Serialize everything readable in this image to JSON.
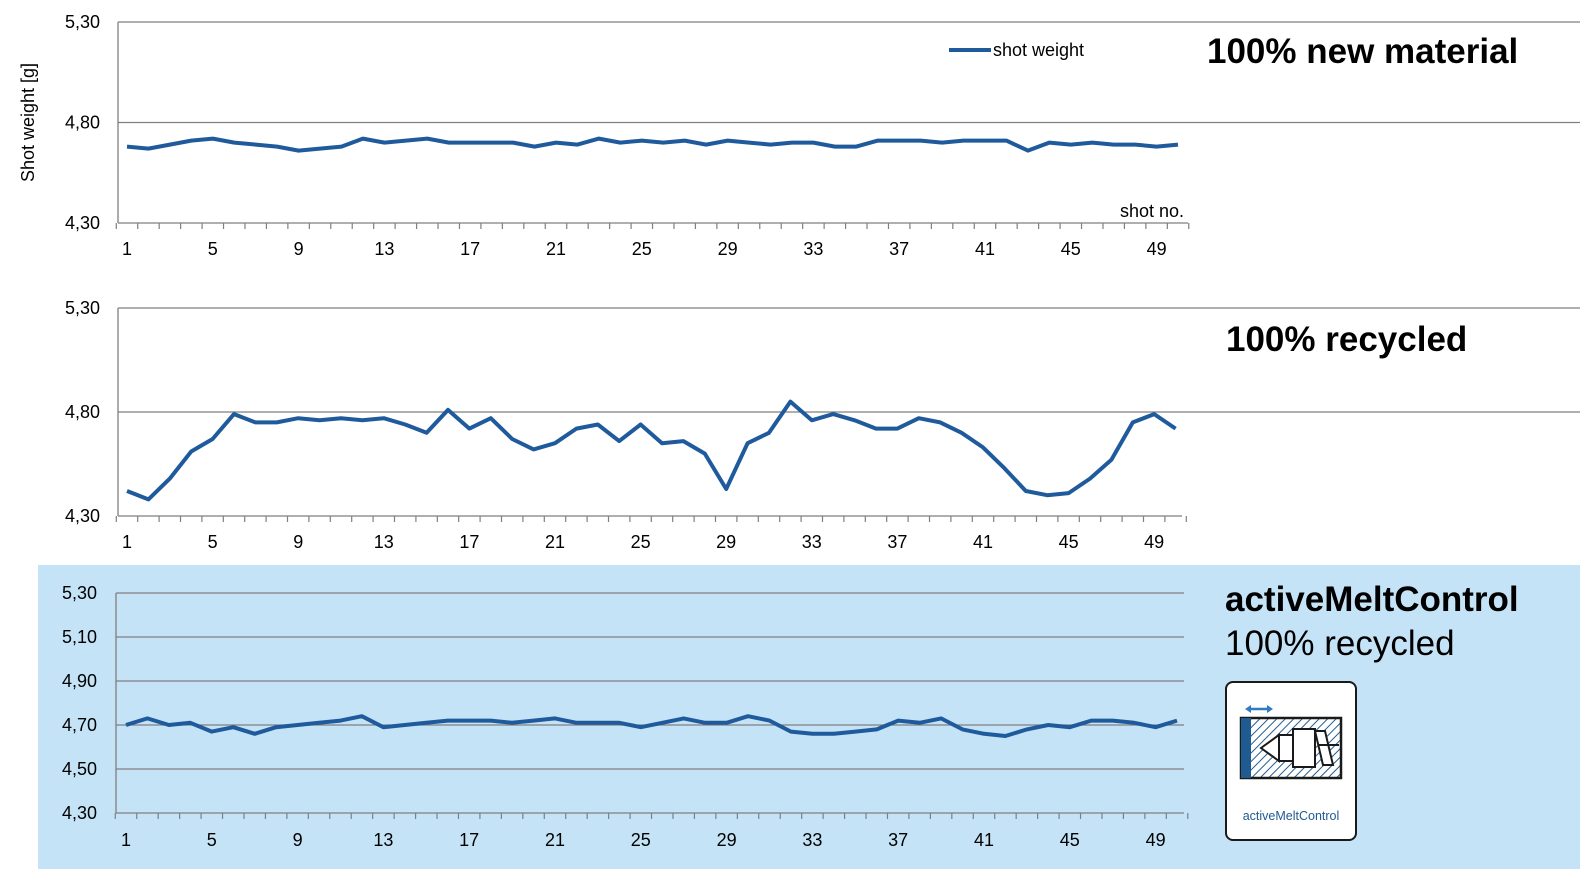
{
  "headings": {
    "panel1": "100% new material",
    "panel2": "100% recycled",
    "panel3_title": "activeMeltControl",
    "panel3_subtitle": "100% recycled"
  },
  "logo": {
    "caption": "activeMeltControl",
    "color": "#1f5a91"
  },
  "colors": {
    "line": "#1f5a9c",
    "grid": "#7f7f7f",
    "band": "#c5e3f6"
  },
  "chart_data": [
    {
      "type": "line",
      "title": "100% new material",
      "ylabel": "Shot weight [g]",
      "xlabel": "shot no.",
      "legend": "top-right",
      "ylim": [
        4.3,
        5.3
      ],
      "yticks": [
        "4,30",
        "4,80",
        "5,30"
      ],
      "xticks": [
        "1",
        "5",
        "9",
        "13",
        "17",
        "21",
        "25",
        "29",
        "33",
        "37",
        "41",
        "45",
        "49"
      ],
      "grid": true,
      "series": [
        {
          "name": "shot weight",
          "x": [
            1,
            2,
            3,
            4,
            5,
            6,
            7,
            8,
            9,
            10,
            11,
            12,
            13,
            14,
            15,
            16,
            17,
            18,
            19,
            20,
            21,
            22,
            23,
            24,
            25,
            26,
            27,
            28,
            29,
            30,
            31,
            32,
            33,
            34,
            35,
            36,
            37,
            38,
            39,
            40,
            41,
            42,
            43,
            44,
            45,
            46,
            47,
            48,
            49,
            50
          ],
          "values": [
            4.68,
            4.67,
            4.69,
            4.71,
            4.72,
            4.7,
            4.69,
            4.68,
            4.66,
            4.67,
            4.68,
            4.72,
            4.7,
            4.71,
            4.72,
            4.7,
            4.7,
            4.7,
            4.7,
            4.68,
            4.7,
            4.69,
            4.72,
            4.7,
            4.71,
            4.7,
            4.71,
            4.69,
            4.71,
            4.7,
            4.69,
            4.7,
            4.7,
            4.68,
            4.68,
            4.71,
            4.71,
            4.71,
            4.7,
            4.71,
            4.71,
            4.71,
            4.66,
            4.7,
            4.69,
            4.7,
            4.69,
            4.69,
            4.68,
            4.69
          ]
        }
      ]
    },
    {
      "type": "line",
      "title": "100% recycled",
      "ylim": [
        4.3,
        5.3
      ],
      "yticks": [
        "4,30",
        "4,80",
        "5,30"
      ],
      "xticks": [
        "1",
        "5",
        "9",
        "13",
        "17",
        "21",
        "25",
        "29",
        "33",
        "37",
        "41",
        "45",
        "49"
      ],
      "grid": true,
      "series": [
        {
          "x": [
            1,
            2,
            3,
            4,
            5,
            6,
            7,
            8,
            9,
            10,
            11,
            12,
            13,
            14,
            15,
            16,
            17,
            18,
            19,
            20,
            21,
            22,
            23,
            24,
            25,
            26,
            27,
            28,
            29,
            30,
            31,
            32,
            33,
            34,
            35,
            36,
            37,
            38,
            39,
            40,
            41,
            42,
            43,
            44,
            45,
            46,
            47,
            48,
            49,
            50
          ],
          "values": [
            4.42,
            4.38,
            4.48,
            4.61,
            4.67,
            4.79,
            4.75,
            4.75,
            4.77,
            4.76,
            4.77,
            4.76,
            4.77,
            4.74,
            4.7,
            4.81,
            4.72,
            4.77,
            4.67,
            4.62,
            4.65,
            4.72,
            4.74,
            4.66,
            4.74,
            4.65,
            4.66,
            4.6,
            4.43,
            4.65,
            4.7,
            4.85,
            4.76,
            4.79,
            4.76,
            4.72,
            4.72,
            4.77,
            4.75,
            4.7,
            4.63,
            4.53,
            4.42,
            4.4,
            4.41,
            4.48,
            4.57,
            4.75,
            4.79,
            4.72
          ]
        }
      ]
    },
    {
      "type": "line",
      "title": "activeMeltControl 100% recycled",
      "ylim": [
        4.3,
        5.3
      ],
      "yticks": [
        "4,30",
        "4,50",
        "4,70",
        "4,90",
        "5,10",
        "5,30"
      ],
      "xticks": [
        "1",
        "5",
        "9",
        "13",
        "17",
        "21",
        "25",
        "29",
        "33",
        "37",
        "41",
        "45",
        "49"
      ],
      "grid": true,
      "series": [
        {
          "x": [
            1,
            2,
            3,
            4,
            5,
            6,
            7,
            8,
            9,
            10,
            11,
            12,
            13,
            14,
            15,
            16,
            17,
            18,
            19,
            20,
            21,
            22,
            23,
            24,
            25,
            26,
            27,
            28,
            29,
            30,
            31,
            32,
            33,
            34,
            35,
            36,
            37,
            38,
            39,
            40,
            41,
            42,
            43,
            44,
            45,
            46,
            47,
            48,
            49,
            50
          ],
          "values": [
            4.7,
            4.73,
            4.7,
            4.71,
            4.67,
            4.69,
            4.66,
            4.69,
            4.7,
            4.71,
            4.72,
            4.74,
            4.69,
            4.7,
            4.71,
            4.72,
            4.72,
            4.72,
            4.71,
            4.72,
            4.73,
            4.71,
            4.71,
            4.71,
            4.69,
            4.71,
            4.73,
            4.71,
            4.71,
            4.74,
            4.72,
            4.67,
            4.66,
            4.66,
            4.67,
            4.68,
            4.72,
            4.71,
            4.73,
            4.68,
            4.66,
            4.65,
            4.68,
            4.7,
            4.69,
            4.72,
            4.72,
            4.71,
            4.69,
            4.72
          ]
        }
      ]
    }
  ]
}
